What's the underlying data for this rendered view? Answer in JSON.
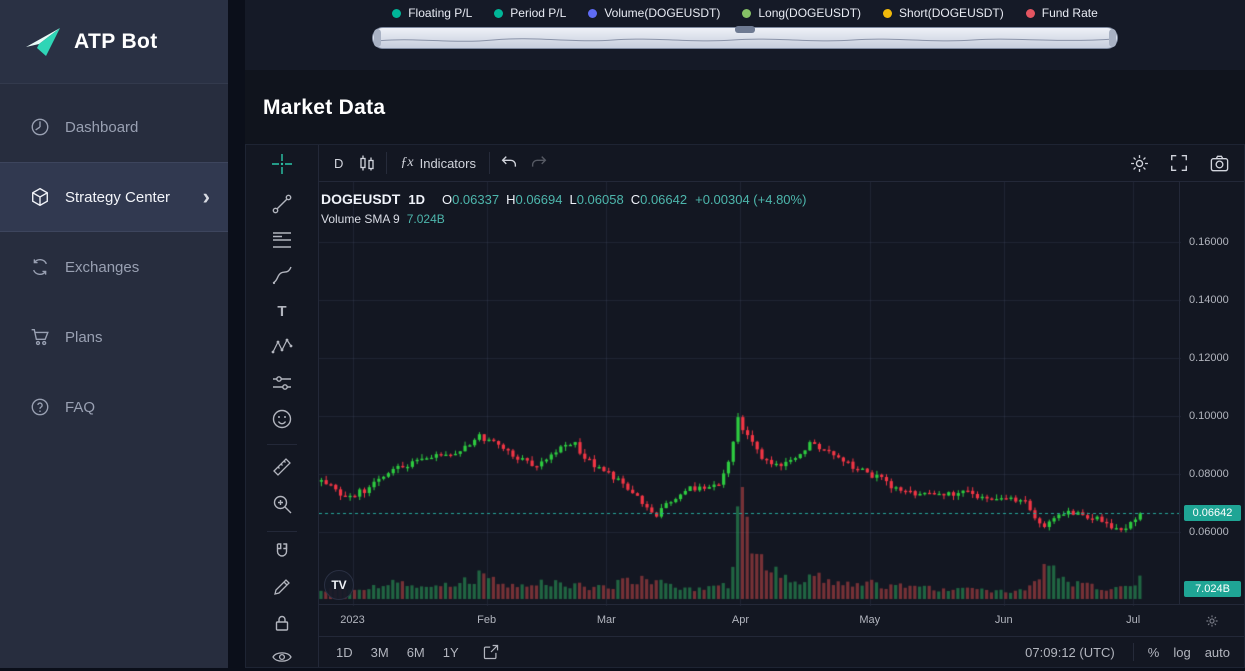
{
  "sidebar": {
    "logo_text": "ATP Bot",
    "items": [
      {
        "label": "Dashboard"
      },
      {
        "label": "Strategy Center"
      },
      {
        "label": "Exchanges"
      },
      {
        "label": "Plans"
      },
      {
        "label": "FAQ"
      }
    ],
    "chevron": "›"
  },
  "legend": {
    "items": [
      {
        "label": "Floating P/L",
        "color": "#00b698"
      },
      {
        "label": "Period P/L",
        "color": "#00b698"
      },
      {
        "label": "Volume(DOGEUSDT)",
        "color": "#5f6cf5"
      },
      {
        "label": "Long(DOGEUSDT)",
        "color": "#86c166"
      },
      {
        "label": "Short(DOGEUSDT)",
        "color": "#f0b90b"
      },
      {
        "label": "Fund Rate",
        "color": "#e35561"
      }
    ]
  },
  "page": {
    "title": "Market Data"
  },
  "chart": {
    "toolbar": {
      "interval": "D",
      "fx": "ƒx",
      "indicators": "Indicators"
    },
    "symbol_row": {
      "symbol": "DOGEUSDT",
      "interval": "1D",
      "o_label": "O",
      "o": "0.06337",
      "h_label": "H",
      "h": "0.06694",
      "l_label": "L",
      "l": "0.06058",
      "c_label": "C",
      "c": "0.06642",
      "change": "+0.00304 (+4.80%)"
    },
    "volume_row": {
      "label": "Volume SMA 9",
      "value": "7.024B"
    },
    "price_axis": {
      "ticks": [
        {
          "label": "0.16000",
          "value": 0.16
        },
        {
          "label": "0.14000",
          "value": 0.14
        },
        {
          "label": "0.12000",
          "value": 0.12
        },
        {
          "label": "0.10000",
          "value": 0.1
        },
        {
          "label": "0.08000",
          "value": 0.08
        },
        {
          "label": "0.06000",
          "value": 0.06
        }
      ],
      "last_price_label": "0.06642",
      "volume_badge": "7.024B",
      "badge_color": "#1fa595"
    },
    "time_axis": {
      "labels": [
        "2023",
        "Feb",
        "Mar",
        "Apr",
        "May",
        "Jun",
        "Jul"
      ]
    },
    "bottom_bar": {
      "ranges": [
        "1D",
        "3M",
        "6M",
        "1Y"
      ],
      "clock": "07:09:12 (UTC)",
      "percent_label": "%",
      "log_label": "log",
      "auto_label": "auto"
    },
    "watermark": "TV"
  },
  "chart_data": {
    "type": "candlestick",
    "symbol": "DOGEUSDT",
    "interval": "1D",
    "days_span": 180,
    "bars": 172,
    "price_anchors": {
      "days": [
        0,
        5,
        9,
        15,
        21,
        25,
        29,
        33,
        36,
        40,
        45,
        49,
        53,
        56,
        60,
        64,
        67,
        70,
        72,
        76,
        80,
        83,
        85,
        87,
        89,
        92,
        95,
        99,
        102,
        105,
        109,
        113,
        117,
        120,
        124,
        128,
        132,
        135,
        139,
        143,
        147,
        151,
        154,
        157,
        160,
        163,
        165,
        167,
        169,
        171
      ],
      "closes": [
        0.0775,
        0.072,
        0.0745,
        0.082,
        0.085,
        0.0865,
        0.088,
        0.093,
        0.0905,
        0.086,
        0.0825,
        0.0885,
        0.09,
        0.084,
        0.08,
        0.0755,
        0.07,
        0.066,
        0.07,
        0.0745,
        0.0755,
        0.077,
        0.085,
        0.099,
        0.093,
        0.086,
        0.083,
        0.086,
        0.09,
        0.088,
        0.0845,
        0.081,
        0.078,
        0.075,
        0.073,
        0.074,
        0.0728,
        0.0735,
        0.0718,
        0.0725,
        0.07,
        0.0615,
        0.066,
        0.0668,
        0.065,
        0.0638,
        0.0615,
        0.0602,
        0.0635,
        0.06642
      ]
    },
    "volume_anchors": {
      "days": [
        0,
        9,
        15,
        21,
        29,
        33,
        40,
        49,
        56,
        60,
        67,
        70,
        76,
        85,
        86,
        87,
        88,
        90,
        92,
        95,
        99,
        105,
        109,
        117,
        124,
        132,
        139,
        143,
        147,
        150,
        151,
        153,
        157,
        163,
        168,
        171
      ],
      "billions": [
        3,
        3.5,
        5,
        4,
        5,
        7,
        4,
        5,
        3.5,
        4,
        7,
        6,
        3,
        4,
        10,
        26,
        30,
        16,
        11,
        8,
        6,
        7,
        5,
        4.5,
        3.5,
        3,
        2.5,
        2.5,
        3,
        8,
        13,
        9,
        5,
        3.5,
        4,
        7.0
      ]
    },
    "month_label_days": [
      7,
      35,
      60,
      88,
      115,
      143,
      170
    ],
    "grid_prices": [
      0.06,
      0.08,
      0.1,
      0.12,
      0.14,
      0.16
    ],
    "last_price": 0.06642,
    "up_color": "#2ecc40",
    "down_color": "#f23645",
    "vol_up_color": "rgba(44,165,92,0.55)",
    "vol_down_color": "rgba(239,83,80,0.45)",
    "price_line_color": "#26a69a"
  }
}
